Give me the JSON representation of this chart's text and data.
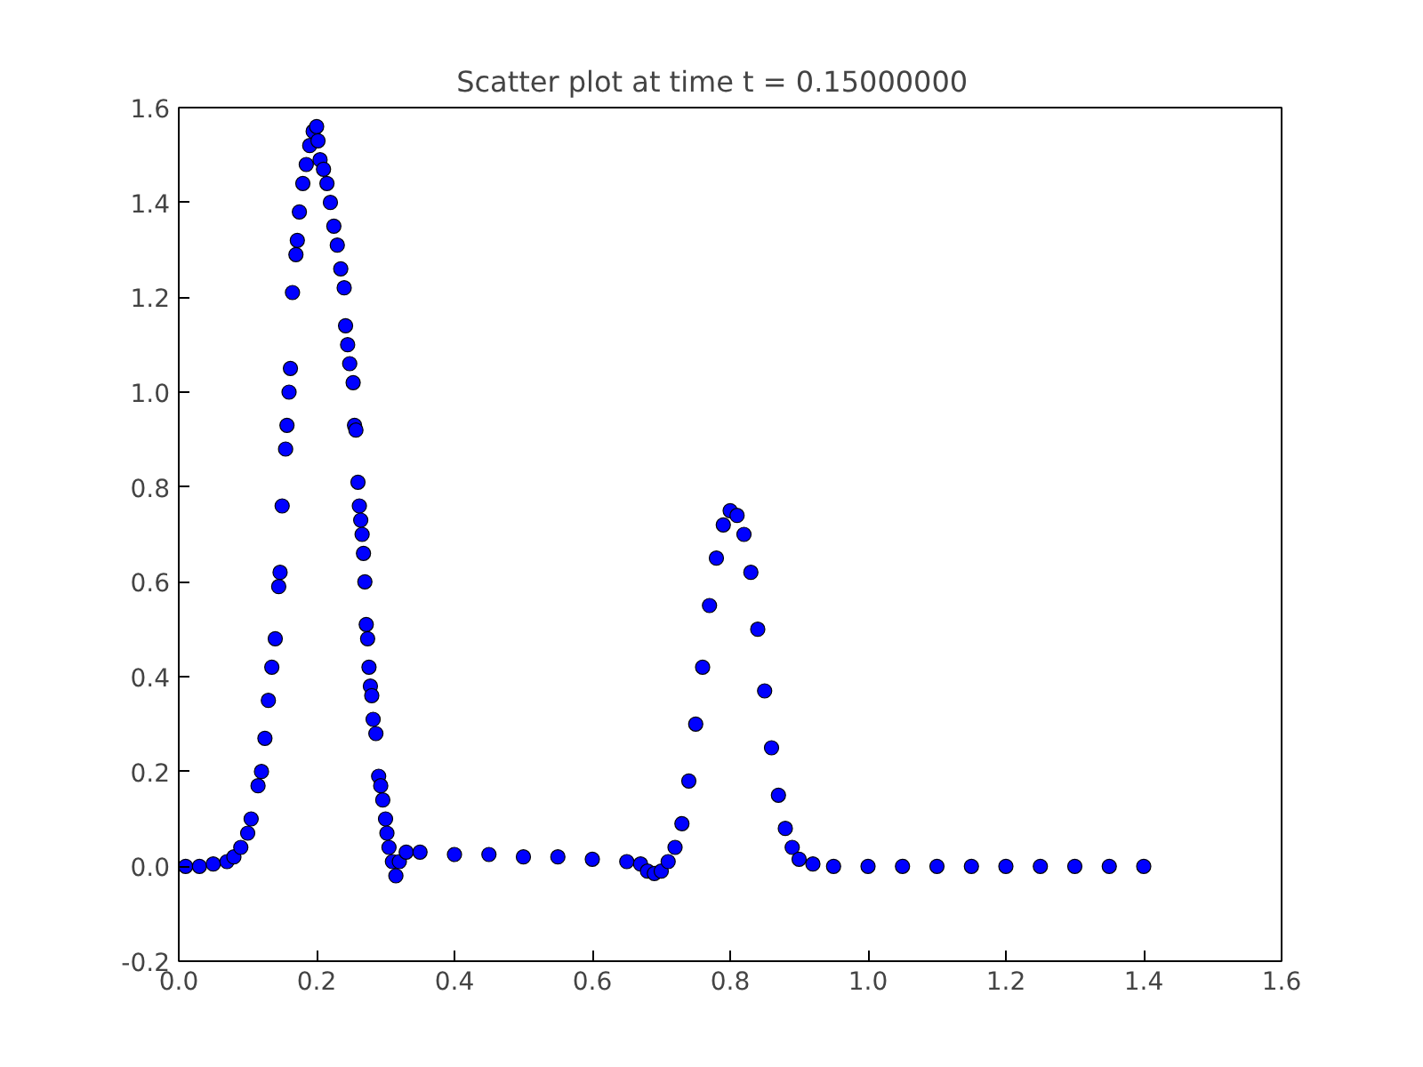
{
  "chart_data": {
    "type": "scatter",
    "title": "Scatter plot at time t =     0.15000000",
    "xlim": [
      0,
      1.6
    ],
    "ylim": [
      -0.2,
      1.6
    ],
    "xticks": [
      {
        "value": 0,
        "label": "0.0"
      },
      0.2,
      0.4,
      0.6,
      0.8,
      {
        "value": 1,
        "label": "1.0"
      },
      1.2,
      1.4,
      1.6
    ],
    "yticks": [
      -0.2,
      {
        "value": 0,
        "label": "0.0"
      },
      0.2,
      0.4,
      0.6,
      0.8,
      {
        "value": 1,
        "label": "1.0"
      },
      1.2,
      1.4,
      1.6
    ],
    "grid": false,
    "marker": "circle",
    "series": [
      {
        "color": "#0000ff",
        "x": [
          0.01,
          0.03,
          0.05,
          0.07,
          0.08,
          0.09,
          0.1,
          0.105,
          0.115,
          0.12,
          0.125,
          0.13,
          0.135,
          0.14,
          0.145,
          0.147,
          0.15,
          0.155,
          0.157,
          0.16,
          0.162,
          0.165,
          0.17,
          0.172,
          0.175,
          0.18,
          0.185,
          0.19,
          0.195,
          0.2,
          0.202,
          0.205,
          0.21,
          0.215,
          0.22,
          0.225,
          0.23,
          0.235,
          0.24,
          0.242,
          0.245,
          0.248,
          0.253,
          0.255,
          0.257,
          0.26,
          0.262,
          0.264,
          0.266,
          0.268,
          0.27,
          0.272,
          0.274,
          0.276,
          0.278,
          0.28,
          0.282,
          0.286,
          0.29,
          0.293,
          0.296,
          0.3,
          0.302,
          0.305,
          0.31,
          0.315,
          0.32,
          0.33,
          0.35,
          0.4,
          0.45,
          0.5,
          0.55,
          0.6,
          0.65,
          0.67,
          0.68,
          0.69,
          0.7,
          0.71,
          0.72,
          0.73,
          0.74,
          0.75,
          0.76,
          0.77,
          0.78,
          0.79,
          0.8,
          0.81,
          0.82,
          0.83,
          0.84,
          0.85,
          0.86,
          0.87,
          0.88,
          0.89,
          0.9,
          0.92,
          0.95,
          1.0,
          1.05,
          1.1,
          1.15,
          1.2,
          1.25,
          1.3,
          1.35,
          1.4
        ],
        "values": [
          0,
          0,
          0.005,
          0.01,
          0.02,
          0.04,
          0.07,
          0.1,
          0.17,
          0.2,
          0.27,
          0.35,
          0.42,
          0.48,
          0.59,
          0.62,
          0.76,
          0.88,
          0.93,
          1.0,
          1.05,
          1.21,
          1.29,
          1.32,
          1.38,
          1.44,
          1.48,
          1.52,
          1.55,
          1.56,
          1.53,
          1.49,
          1.47,
          1.44,
          1.4,
          1.35,
          1.31,
          1.26,
          1.22,
          1.14,
          1.1,
          1.06,
          1.02,
          0.93,
          0.92,
          0.81,
          0.76,
          0.73,
          0.7,
          0.66,
          0.6,
          0.51,
          0.48,
          0.42,
          0.38,
          0.36,
          0.31,
          0.28,
          0.19,
          0.17,
          0.14,
          0.1,
          0.07,
          0.04,
          0.01,
          -0.02,
          0.01,
          0.03,
          0.03,
          0.025,
          0.025,
          0.02,
          0.02,
          0.015,
          0.01,
          0.005,
          -0.01,
          -0.015,
          -0.01,
          0.01,
          0.04,
          0.09,
          0.18,
          0.3,
          0.42,
          0.55,
          0.65,
          0.72,
          0.75,
          0.74,
          0.7,
          0.62,
          0.5,
          0.37,
          0.25,
          0.15,
          0.08,
          0.04,
          0.015,
          0.005,
          0,
          0,
          0,
          0,
          0,
          0,
          0,
          0,
          0,
          0
        ]
      }
    ]
  }
}
